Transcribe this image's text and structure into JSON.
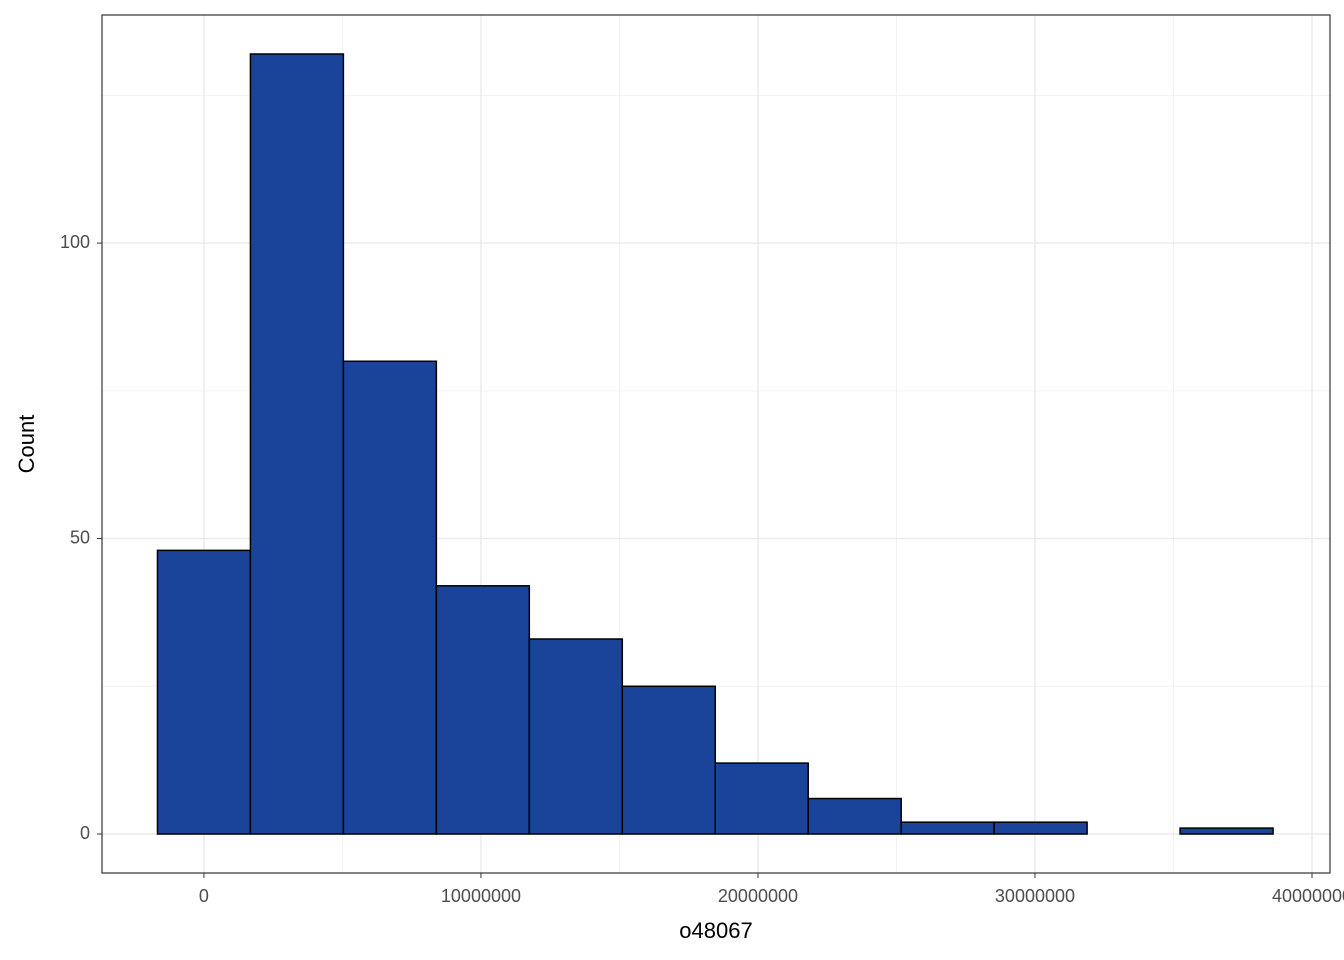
{
  "chart_data": {
    "type": "histogram",
    "x_label": "o48067",
    "y_label": "Count",
    "bins": [
      -1678000,
      1678000,
      5034000,
      8390000,
      11746000,
      15102000,
      18458000,
      21814000,
      25170000,
      28526000,
      31882000,
      35238000,
      38594000
    ],
    "values": [
      48,
      132,
      80,
      42,
      33,
      25,
      12,
      6,
      2,
      2,
      0,
      1
    ],
    "color": "#1a4499",
    "xlim": [
      -3680000,
      40650000
    ],
    "xticks": [
      0,
      10000000,
      20000000,
      30000000,
      40000000
    ],
    "ylim": [
      -6.6,
      138.6
    ],
    "yticks": [
      0,
      50,
      100
    ],
    "grid": true
  }
}
